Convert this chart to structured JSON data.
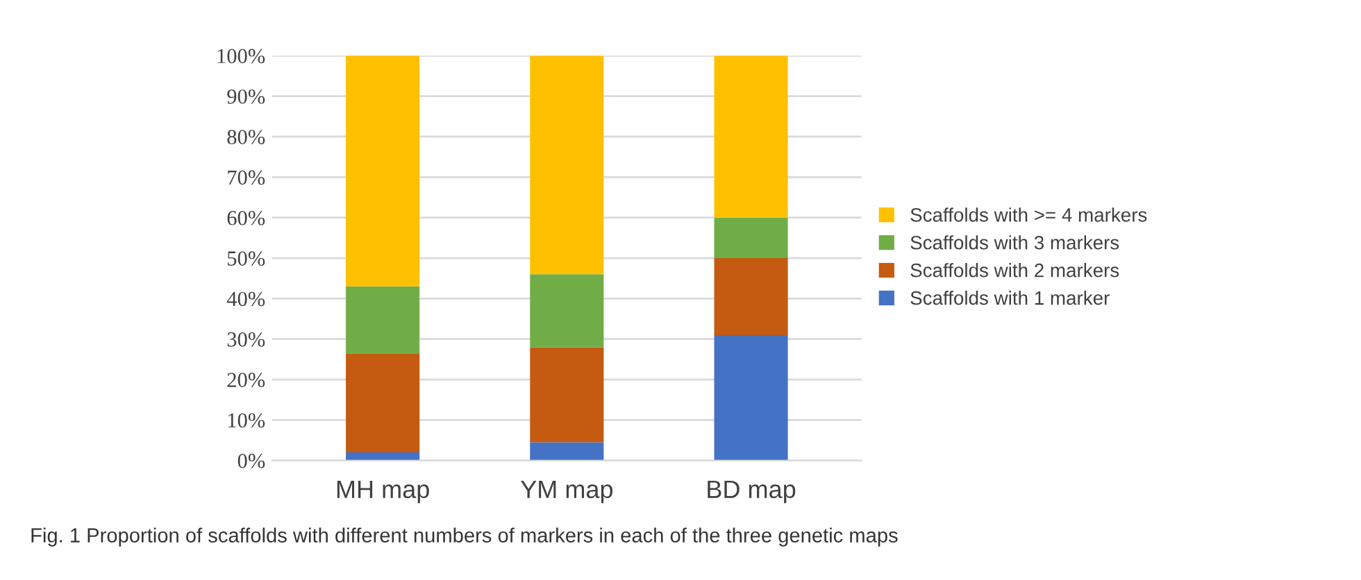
{
  "chart_data": {
    "type": "bar",
    "stacked": true,
    "categories": [
      "MH map",
      "YM map",
      "BD map"
    ],
    "series": [
      {
        "name": "Scaffolds with 1 marker",
        "color": "#4472c4",
        "values": [
          2,
          4.5,
          31
        ]
      },
      {
        "name": "Scaffolds with 2 markers",
        "color": "#c55a11",
        "values": [
          24.5,
          23.5,
          19
        ]
      },
      {
        "name": "Scaffolds with 3 markers",
        "color": "#70ad47",
        "values": [
          16.5,
          18,
          10
        ]
      },
      {
        "name": "Scaffolds with >= 4 markers",
        "color": "#ffc000",
        "values": [
          57,
          54,
          40
        ]
      }
    ],
    "ylim": [
      0,
      100
    ],
    "yticks": [
      {
        "value": 0,
        "label": "0%"
      },
      {
        "value": 10,
        "label": "10%"
      },
      {
        "value": 20,
        "label": "20%"
      },
      {
        "value": 30,
        "label": "30%"
      },
      {
        "value": 40,
        "label": "40%"
      },
      {
        "value": 50,
        "label": "50%"
      },
      {
        "value": 60,
        "label": "60%"
      },
      {
        "value": 70,
        "label": "70%"
      },
      {
        "value": 80,
        "label": "80%"
      },
      {
        "value": 90,
        "label": "90%"
      },
      {
        "value": 100,
        "label": "100%"
      }
    ],
    "grid": "y",
    "legend": "right",
    "annotations": [
      "Fig. 1 Proportion of scaffolds with different numbers of markers in each of the three genetic maps"
    ]
  }
}
